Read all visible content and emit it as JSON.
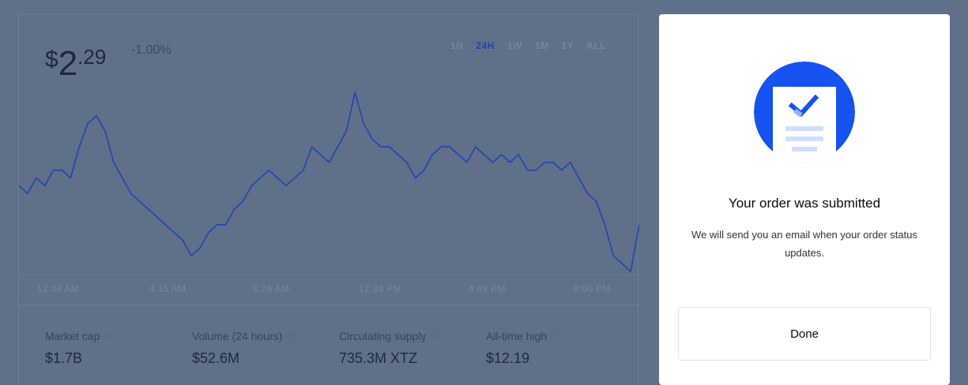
{
  "price": {
    "currency": "$",
    "whole": "2",
    "cents": ".29",
    "change": "-1.00%"
  },
  "ranges": [
    {
      "label": "1H",
      "active": false
    },
    {
      "label": "24H",
      "active": true
    },
    {
      "label": "1W",
      "active": false
    },
    {
      "label": "1M",
      "active": false
    },
    {
      "label": "1Y",
      "active": false
    },
    {
      "label": "ALL",
      "active": false
    }
  ],
  "chart_data": {
    "type": "line",
    "title": "",
    "x_tick_labels": [
      "12:04 AM",
      "4:15 AM",
      "8:26 AM",
      "12:38 PM",
      "4:49 PM",
      "9:00 PM"
    ],
    "series": [
      {
        "values": [
          2.305,
          2.3,
          2.31,
          2.305,
          2.315,
          2.315,
          2.31,
          2.33,
          2.345,
          2.35,
          2.34,
          2.32,
          2.31,
          2.3,
          2.295,
          2.29,
          2.285,
          2.28,
          2.275,
          2.27,
          2.26,
          2.265,
          2.275,
          2.28,
          2.28,
          2.29,
          2.295,
          2.305,
          2.31,
          2.315,
          2.31,
          2.305,
          2.31,
          2.315,
          2.33,
          2.325,
          2.32,
          2.33,
          2.34,
          2.365,
          2.345,
          2.335,
          2.33,
          2.33,
          2.325,
          2.32,
          2.31,
          2.315,
          2.325,
          2.33,
          2.33,
          2.325,
          2.32,
          2.33,
          2.325,
          2.32,
          2.325,
          2.32,
          2.325,
          2.315,
          2.315,
          2.32,
          2.32,
          2.315,
          2.32,
          2.31,
          2.3,
          2.295,
          2.28,
          2.26,
          2.255,
          2.25,
          2.28
        ],
        "color": "#2144b5"
      }
    ]
  },
  "stats": [
    {
      "label": "Market cap",
      "value": "$1.7B"
    },
    {
      "label": "Volume (24 hours)",
      "value": "$52.6M"
    },
    {
      "label": "Circulating supply",
      "value": "735.3M XTZ"
    },
    {
      "label": "All-time high",
      "value": "$12.19"
    }
  ],
  "modal": {
    "title": "Your order was submitted",
    "body": "We will send you an email when your order status updates.",
    "done_label": "Done",
    "illustration_icon": "order-document-check-icon",
    "accent_color": "#1652f0"
  }
}
